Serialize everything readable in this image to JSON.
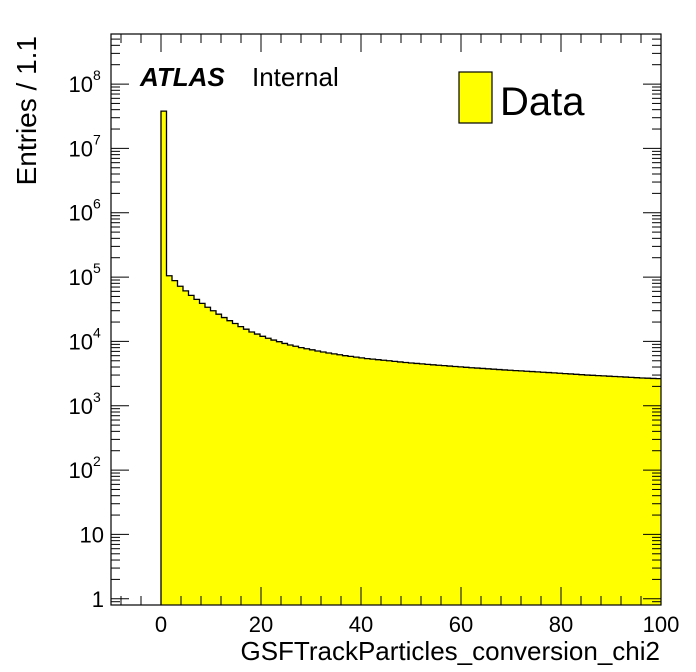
{
  "chart_data": {
    "type": "histogram",
    "title": "",
    "xlabel": "GSFTrackParticles_conversion_chi2",
    "ylabel": "Entries / 1.1",
    "xlim": [
      -10,
      100
    ],
    "ylim": [
      0.8,
      600000000
    ],
    "y_scale": "log",
    "grid": false,
    "bin_width": 1.1,
    "x_ticks": [
      "0",
      "20",
      "40",
      "60",
      "80",
      "100"
    ],
    "y_ticks": [
      {
        "value": 1,
        "label": "1"
      },
      {
        "value": 10,
        "label": "10"
      },
      {
        "value": 100,
        "base": "10",
        "exp": "2"
      },
      {
        "value": 1000,
        "base": "10",
        "exp": "3"
      },
      {
        "value": 10000,
        "base": "10",
        "exp": "4"
      },
      {
        "value": 100000,
        "base": "10",
        "exp": "5"
      },
      {
        "value": 1000000,
        "base": "10",
        "exp": "6"
      },
      {
        "value": 10000000,
        "base": "10",
        "exp": "7"
      },
      {
        "value": 100000000,
        "base": "10",
        "exp": "8"
      }
    ],
    "series": [
      {
        "name": "Data",
        "color": "#ffff00",
        "edges": [
          0.0,
          1.1,
          2.2,
          3.3,
          4.4,
          5.5,
          6.6,
          7.7,
          8.8,
          9.9,
          11.0,
          12.1,
          13.2,
          14.3,
          15.4,
          16.5,
          17.6,
          18.7,
          19.8,
          20.9,
          22.0,
          23.1,
          24.2,
          25.3,
          26.4,
          27.5,
          28.6,
          29.7,
          30.8,
          31.9,
          33.0,
          34.1,
          35.2,
          36.3,
          37.4,
          38.5,
          39.6,
          40.7,
          41.8,
          42.9,
          44.0,
          45.1,
          46.2,
          47.3,
          48.4,
          49.5,
          50.6,
          51.7,
          52.8,
          53.9,
          55.0,
          56.1,
          57.2,
          58.3,
          59.4,
          60.5,
          61.6,
          62.7,
          63.8,
          64.9,
          66.0,
          67.1,
          68.2,
          69.3,
          70.4,
          71.5,
          72.6,
          73.7,
          74.8,
          75.9,
          77.0,
          78.1,
          79.2,
          80.3,
          81.4,
          82.5,
          83.6,
          84.7,
          85.8,
          86.9,
          88.0,
          89.1,
          90.2,
          91.3,
          92.4,
          93.5,
          94.6,
          95.7,
          96.8,
          97.9,
          99.0,
          100.0
        ],
        "values": [
          38000000,
          105000,
          88000,
          72000,
          61000,
          52000,
          45000,
          39000,
          34000,
          30000,
          26500,
          23500,
          21000,
          19000,
          17000,
          15500,
          14000,
          13000,
          12000,
          11200,
          10500,
          9900,
          9300,
          8800,
          8400,
          8000,
          7700,
          7400,
          7100,
          6850,
          6600,
          6400,
          6200,
          6000,
          5850,
          5700,
          5550,
          5400,
          5300,
          5200,
          5100,
          5000,
          4900,
          4800,
          4700,
          4620,
          4550,
          4480,
          4400,
          4330,
          4260,
          4200,
          4140,
          4080,
          4020,
          3960,
          3900,
          3850,
          3800,
          3750,
          3700,
          3650,
          3600,
          3560,
          3520,
          3480,
          3440,
          3400,
          3360,
          3320,
          3280,
          3240,
          3200,
          3160,
          3120,
          3080,
          3040,
          3000,
          2970,
          2940,
          2910,
          2880,
          2850,
          2820,
          2790,
          2760,
          2730,
          2700,
          2680,
          2660,
          2640
        ]
      }
    ],
    "legend": {
      "position": "top-right",
      "label": "Data"
    },
    "annotations": {
      "experiment": "ATLAS",
      "status": "Internal"
    }
  }
}
